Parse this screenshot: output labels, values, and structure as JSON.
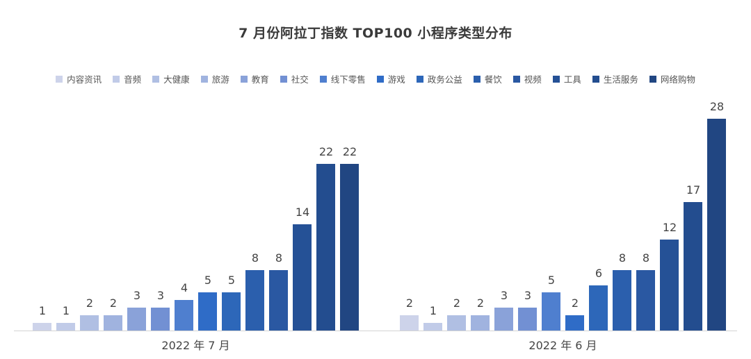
{
  "title": "7 月份阿拉丁指数 TOP100 小程序类型分布",
  "legend": [
    {
      "label": "内容资讯",
      "color": "#cdd3ea"
    },
    {
      "label": "音频",
      "color": "#c1cbe8"
    },
    {
      "label": "大健康",
      "color": "#b0bfe3"
    },
    {
      "label": "旅游",
      "color": "#a0b3df"
    },
    {
      "label": "教育",
      "color": "#8aa2d9"
    },
    {
      "label": "社交",
      "color": "#7290d3"
    },
    {
      "label": "线下零售",
      "color": "#4f7fcf"
    },
    {
      "label": "游戏",
      "color": "#2f6cc7"
    },
    {
      "label": "政务公益",
      "color": "#2d67b9"
    },
    {
      "label": "餐饮",
      "color": "#2b5fad"
    },
    {
      "label": "视频",
      "color": "#2a58a2"
    },
    {
      "label": "工具",
      "color": "#255196"
    },
    {
      "label": "生活服务",
      "color": "#234d8f"
    },
    {
      "label": "网络购物",
      "color": "#214682"
    }
  ],
  "chart_data": {
    "type": "bar",
    "title": "7 月份阿拉丁指数 TOP100 小程序类型分布",
    "categories": [
      "2022 年 7 月",
      "2022 年 6 月"
    ],
    "xlabel": "",
    "ylabel": "",
    "grid": false,
    "legend_position": "top",
    "series": [
      {
        "name": "内容资讯",
        "values": [
          1,
          2
        ]
      },
      {
        "name": "音频",
        "values": [
          1,
          1
        ]
      },
      {
        "name": "大健康",
        "values": [
          2,
          2
        ]
      },
      {
        "name": "旅游",
        "values": [
          2,
          2
        ]
      },
      {
        "name": "教育",
        "values": [
          3,
          3
        ]
      },
      {
        "name": "社交",
        "values": [
          3,
          3
        ]
      },
      {
        "name": "线下零售",
        "values": [
          4,
          5
        ]
      },
      {
        "name": "游戏",
        "values": [
          5,
          2
        ]
      },
      {
        "name": "政务公益",
        "values": [
          5,
          6
        ]
      },
      {
        "name": "餐饮",
        "values": [
          8,
          8
        ]
      },
      {
        "name": "视频",
        "values": [
          8,
          8
        ]
      },
      {
        "name": "工具",
        "values": [
          14,
          12
        ]
      },
      {
        "name": "生活服务",
        "values": [
          22,
          17
        ]
      },
      {
        "name": "网络购物",
        "values": [
          22,
          28
        ]
      }
    ],
    "ylim": [
      0,
      30
    ]
  }
}
